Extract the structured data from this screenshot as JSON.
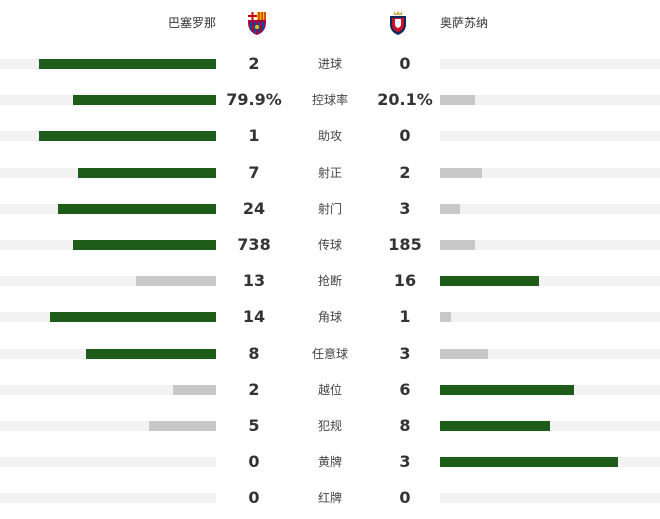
{
  "home": {
    "name": "巴塞罗那",
    "logo": "fc-barcelona-crest"
  },
  "away": {
    "name": "奥萨苏纳",
    "logo": "osasuna-crest"
  },
  "colors": {
    "leader": "#1e5c1a",
    "trailer": "#c8c8c8",
    "track": "#f2f2f2"
  },
  "stats": [
    {
      "label": "进球",
      "home": "2",
      "away": "0",
      "home_fill": 82,
      "away_fill": 0,
      "leader": "home"
    },
    {
      "label": "控球率",
      "home": "79.9%",
      "away": "20.1%",
      "home_fill": 66,
      "away_fill": 16,
      "leader": "home"
    },
    {
      "label": "助攻",
      "home": "1",
      "away": "0",
      "home_fill": 82,
      "away_fill": 0,
      "leader": "home"
    },
    {
      "label": "射正",
      "home": "7",
      "away": "2",
      "home_fill": 64,
      "away_fill": 19,
      "leader": "home"
    },
    {
      "label": "射门",
      "home": "24",
      "away": "3",
      "home_fill": 73,
      "away_fill": 9,
      "leader": "home"
    },
    {
      "label": "传球",
      "home": "738",
      "away": "185",
      "home_fill": 66,
      "away_fill": 16,
      "leader": "home"
    },
    {
      "label": "抢断",
      "home": "13",
      "away": "16",
      "home_fill": 37,
      "away_fill": 45,
      "leader": "away"
    },
    {
      "label": "角球",
      "home": "14",
      "away": "1",
      "home_fill": 77,
      "away_fill": 5,
      "leader": "home"
    },
    {
      "label": "任意球",
      "home": "8",
      "away": "3",
      "home_fill": 60,
      "away_fill": 22,
      "leader": "home"
    },
    {
      "label": "越位",
      "home": "2",
      "away": "6",
      "home_fill": 20,
      "away_fill": 61,
      "leader": "away"
    },
    {
      "label": "犯规",
      "home": "5",
      "away": "8",
      "home_fill": 31,
      "away_fill": 50,
      "leader": "away"
    },
    {
      "label": "黄牌",
      "home": "0",
      "away": "3",
      "home_fill": 0,
      "away_fill": 81,
      "leader": "away"
    },
    {
      "label": "红牌",
      "home": "0",
      "away": "0",
      "home_fill": 0,
      "away_fill": 0,
      "leader": "none"
    }
  ]
}
